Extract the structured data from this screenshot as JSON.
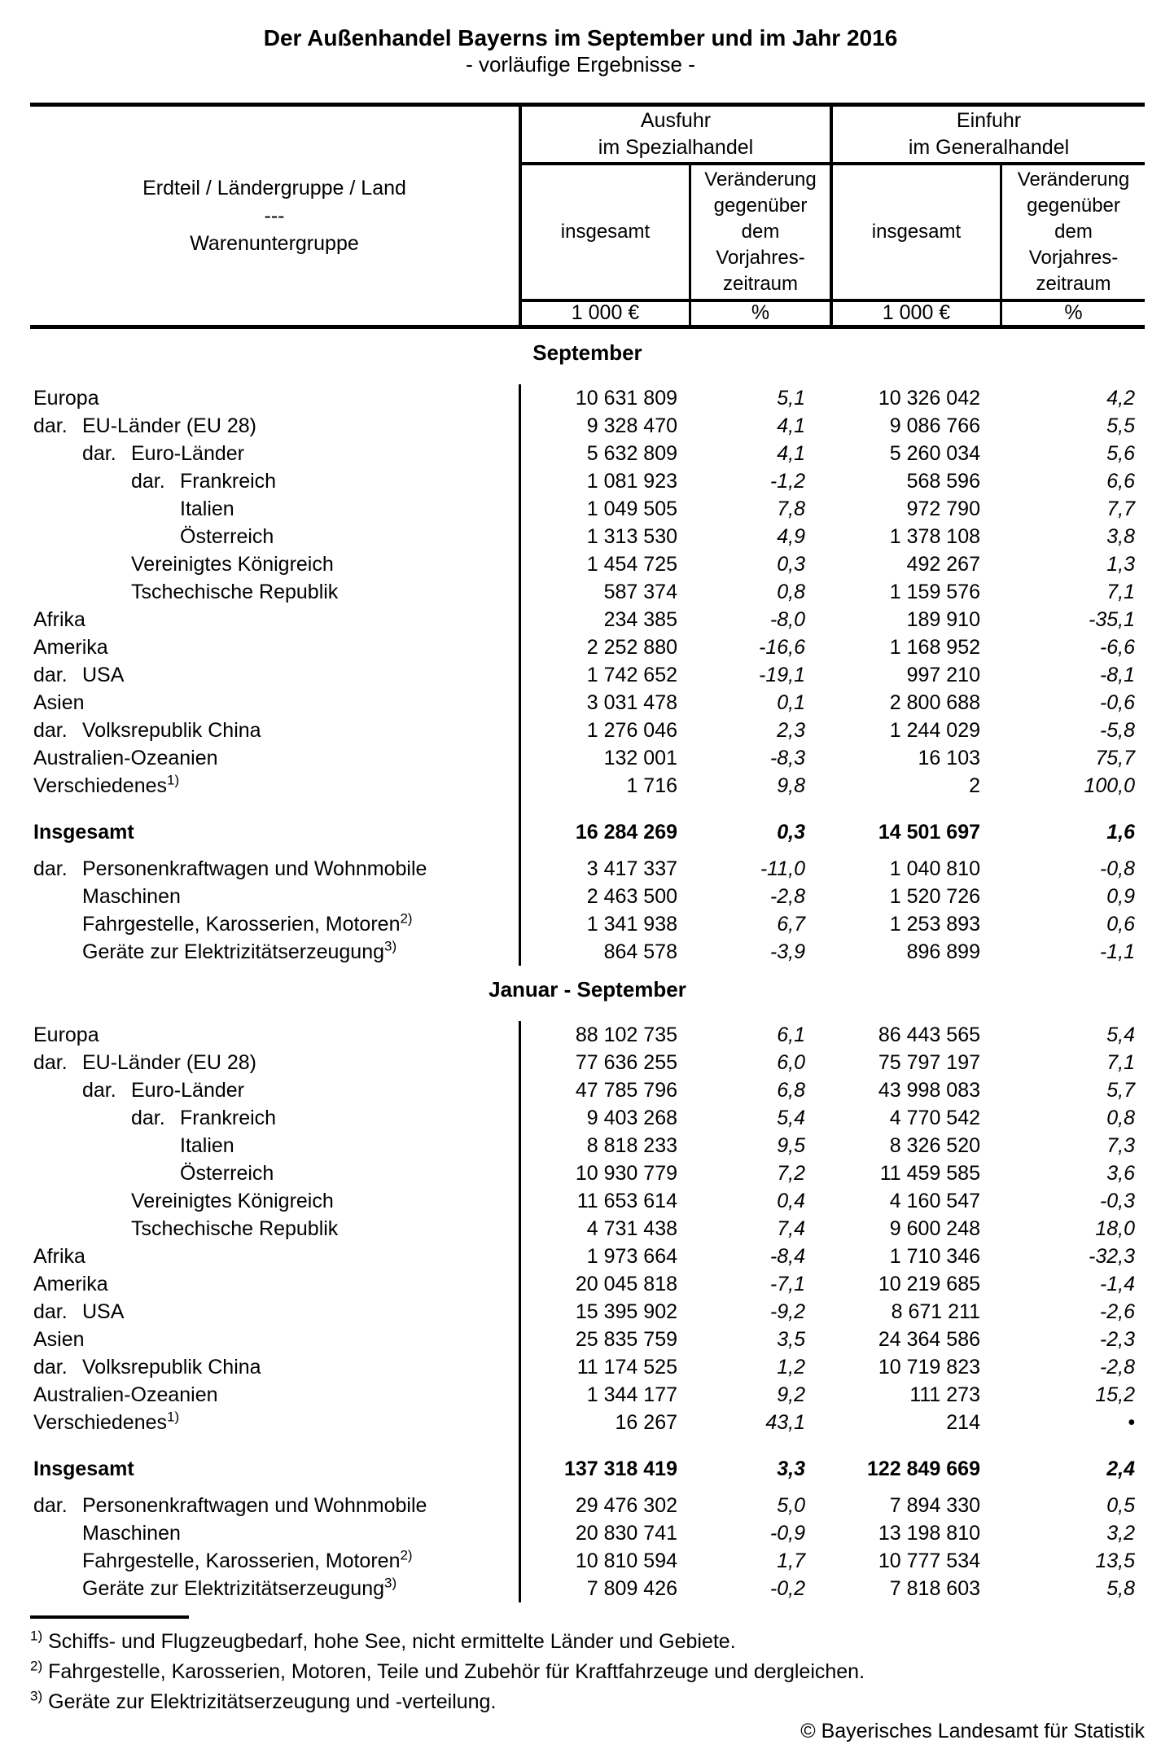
{
  "title": "Der Außenhandel Bayerns im September und im Jahr 2016",
  "subtitle": "- vorläufige Ergebnisse -",
  "header": {
    "stub": [
      "Erdteil / Ländergruppe / Land",
      "---",
      "Warenuntergruppe"
    ],
    "groups": [
      {
        "line1": "Ausfuhr",
        "line2": "im Spezialhandel"
      },
      {
        "line1": "Einfuhr",
        "line2": "im Generalhandel"
      }
    ],
    "total_label": "insgesamt",
    "change_label": [
      "Veränderung",
      "gegenüber",
      "dem",
      "Vorjahres-",
      "zeitraum"
    ],
    "units": {
      "value": "1 000 €",
      "percent": "%"
    }
  },
  "sections": [
    {
      "heading": "September",
      "geo_rows": [
        {
          "level": 0,
          "label": "Europa",
          "values": [
            "10 631 809",
            "5,1",
            "10 326 042",
            "4,2"
          ]
        },
        {
          "level": 1,
          "prefix": "dar.",
          "label": "EU-Länder (EU 28)",
          "values": [
            "9 328 470",
            "4,1",
            "9 086 766",
            "5,5"
          ]
        },
        {
          "level": 2,
          "prefix": "dar.",
          "label": "Euro-Länder",
          "values": [
            "5 632 809",
            "4,1",
            "5 260 034",
            "5,6"
          ]
        },
        {
          "level": 3,
          "prefix": "dar.",
          "label": "Frankreich",
          "values": [
            "1 081 923",
            "-1,2",
            "568 596",
            "6,6"
          ]
        },
        {
          "level": 3,
          "label": "Italien",
          "values": [
            "1 049 505",
            "7,8",
            "972 790",
            "7,7"
          ]
        },
        {
          "level": 3,
          "label": "Österreich",
          "values": [
            "1 313 530",
            "4,9",
            "1 378 108",
            "3,8"
          ]
        },
        {
          "level": 2,
          "label": "Vereinigtes Königreich",
          "values": [
            "1 454 725",
            "0,3",
            "492 267",
            "1,3"
          ]
        },
        {
          "level": 2,
          "label": "Tschechische Republik",
          "values": [
            "587 374",
            "0,8",
            "1 159 576",
            "7,1"
          ]
        },
        {
          "level": 0,
          "label": "Afrika",
          "values": [
            "234 385",
            "-8,0",
            "189 910",
            "-35,1"
          ]
        },
        {
          "level": 0,
          "label": "Amerika",
          "values": [
            "2 252 880",
            "-16,6",
            "1 168 952",
            "-6,6"
          ]
        },
        {
          "level": 1,
          "prefix": "dar.",
          "label": "USA",
          "values": [
            "1 742 652",
            "-19,1",
            "997 210",
            "-8,1"
          ]
        },
        {
          "level": 0,
          "label": "Asien",
          "values": [
            "3 031 478",
            "0,1",
            "2 800 688",
            "-0,6"
          ]
        },
        {
          "level": 1,
          "prefix": "dar.",
          "label": "Volksrepublik China",
          "values": [
            "1 276 046",
            "2,3",
            "1 244 029",
            "-5,8"
          ]
        },
        {
          "level": 0,
          "label": "Australien-Ozeanien",
          "values": [
            "132 001",
            "-8,3",
            "16 103",
            "75,7"
          ]
        },
        {
          "level": 0,
          "label": "Verschiedenes",
          "sup": "1)",
          "values": [
            "1 716",
            "9,8",
            "2",
            "100,0"
          ]
        }
      ],
      "total_row": {
        "level": 0,
        "label": "Insgesamt",
        "values": [
          "16 284 269",
          "0,3",
          "14 501 697",
          "1,6"
        ]
      },
      "commodity_rows": [
        {
          "level": 1,
          "prefix": "dar.",
          "label": "Personenkraftwagen und Wohnmobile",
          "values": [
            "3 417 337",
            "-11,0",
            "1 040 810",
            "-0,8"
          ]
        },
        {
          "level": 1,
          "label": "Maschinen",
          "values": [
            "2 463 500",
            "-2,8",
            "1 520 726",
            "0,9"
          ]
        },
        {
          "level": 1,
          "label": "Fahrgestelle, Karosserien, Motoren",
          "sup": "2)",
          "values": [
            "1 341 938",
            "6,7",
            "1 253 893",
            "0,6"
          ]
        },
        {
          "level": 1,
          "label": "Geräte zur Elektrizitätserzeugung",
          "sup": "3)",
          "values": [
            "864 578",
            "-3,9",
            "896 899",
            "-1,1"
          ]
        }
      ]
    },
    {
      "heading": "Januar - September",
      "geo_rows": [
        {
          "level": 0,
          "label": "Europa",
          "values": [
            "88 102 735",
            "6,1",
            "86 443 565",
            "5,4"
          ]
        },
        {
          "level": 1,
          "prefix": "dar.",
          "label": "EU-Länder (EU 28)",
          "values": [
            "77 636 255",
            "6,0",
            "75 797 197",
            "7,1"
          ]
        },
        {
          "level": 2,
          "prefix": "dar.",
          "label": "Euro-Länder",
          "values": [
            "47 785 796",
            "6,8",
            "43 998 083",
            "5,7"
          ]
        },
        {
          "level": 3,
          "prefix": "dar.",
          "label": "Frankreich",
          "values": [
            "9 403 268",
            "5,4",
            "4 770 542",
            "0,8"
          ]
        },
        {
          "level": 3,
          "label": "Italien",
          "values": [
            "8 818 233",
            "9,5",
            "8 326 520",
            "7,3"
          ]
        },
        {
          "level": 3,
          "label": "Österreich",
          "values": [
            "10 930 779",
            "7,2",
            "11 459 585",
            "3,6"
          ]
        },
        {
          "level": 2,
          "label": "Vereinigtes Königreich",
          "values": [
            "11 653 614",
            "0,4",
            "4 160 547",
            "-0,3"
          ]
        },
        {
          "level": 2,
          "label": "Tschechische Republik",
          "values": [
            "4 731 438",
            "7,4",
            "9 600 248",
            "18,0"
          ]
        },
        {
          "level": 0,
          "label": "Afrika",
          "values": [
            "1 973 664",
            "-8,4",
            "1 710 346",
            "-32,3"
          ]
        },
        {
          "level": 0,
          "label": "Amerika",
          "values": [
            "20 045 818",
            "-7,1",
            "10 219 685",
            "-1,4"
          ]
        },
        {
          "level": 1,
          "prefix": "dar.",
          "label": "USA",
          "values": [
            "15 395 902",
            "-9,2",
            "8 671 211",
            "-2,6"
          ]
        },
        {
          "level": 0,
          "label": "Asien",
          "values": [
            "25 835 759",
            "3,5",
            "24 364 586",
            "-2,3"
          ]
        },
        {
          "level": 1,
          "prefix": "dar.",
          "label": "Volksrepublik China",
          "values": [
            "11 174 525",
            "1,2",
            "10 719 823",
            "-2,8"
          ]
        },
        {
          "level": 0,
          "label": "Australien-Ozeanien",
          "values": [
            "1 344 177",
            "9,2",
            "111 273",
            "15,2"
          ]
        },
        {
          "level": 0,
          "label": "Verschiedenes",
          "sup": "1)",
          "values": [
            "16 267",
            "43,1",
            "214",
            "•"
          ]
        }
      ],
      "total_row": {
        "level": 0,
        "label": "Insgesamt",
        "values": [
          "137 318 419",
          "3,3",
          "122 849 669",
          "2,4"
        ]
      },
      "commodity_rows": [
        {
          "level": 1,
          "prefix": "dar.",
          "label": "Personenkraftwagen und Wohnmobile",
          "values": [
            "29 476 302",
            "5,0",
            "7 894 330",
            "0,5"
          ]
        },
        {
          "level": 1,
          "label": "Maschinen",
          "values": [
            "20 830 741",
            "-0,9",
            "13 198 810",
            "3,2"
          ]
        },
        {
          "level": 1,
          "label": "Fahrgestelle, Karosserien, Motoren",
          "sup": "2)",
          "values": [
            "10 810 594",
            "1,7",
            "10 777 534",
            "13,5"
          ]
        },
        {
          "level": 1,
          "label": "Geräte zur Elektrizitätserzeugung",
          "sup": "3)",
          "values": [
            "7 809 426",
            "-0,2",
            "7 818 603",
            "5,8"
          ]
        }
      ]
    }
  ],
  "footnotes": [
    {
      "marker": "1)",
      "text": "Schiffs- und Flugzeugbedarf, hohe See, nicht ermittelte Länder und Gebiete."
    },
    {
      "marker": "2)",
      "text": "Fahrgestelle, Karosserien, Motoren, Teile und Zubehör für Kraftfahrzeuge und dergleichen."
    },
    {
      "marker": "3)",
      "text": "Geräte zur Elektrizitätserzeugung und -verteilung."
    }
  ],
  "copyright": "© Bayerisches Landesamt für Statistik"
}
